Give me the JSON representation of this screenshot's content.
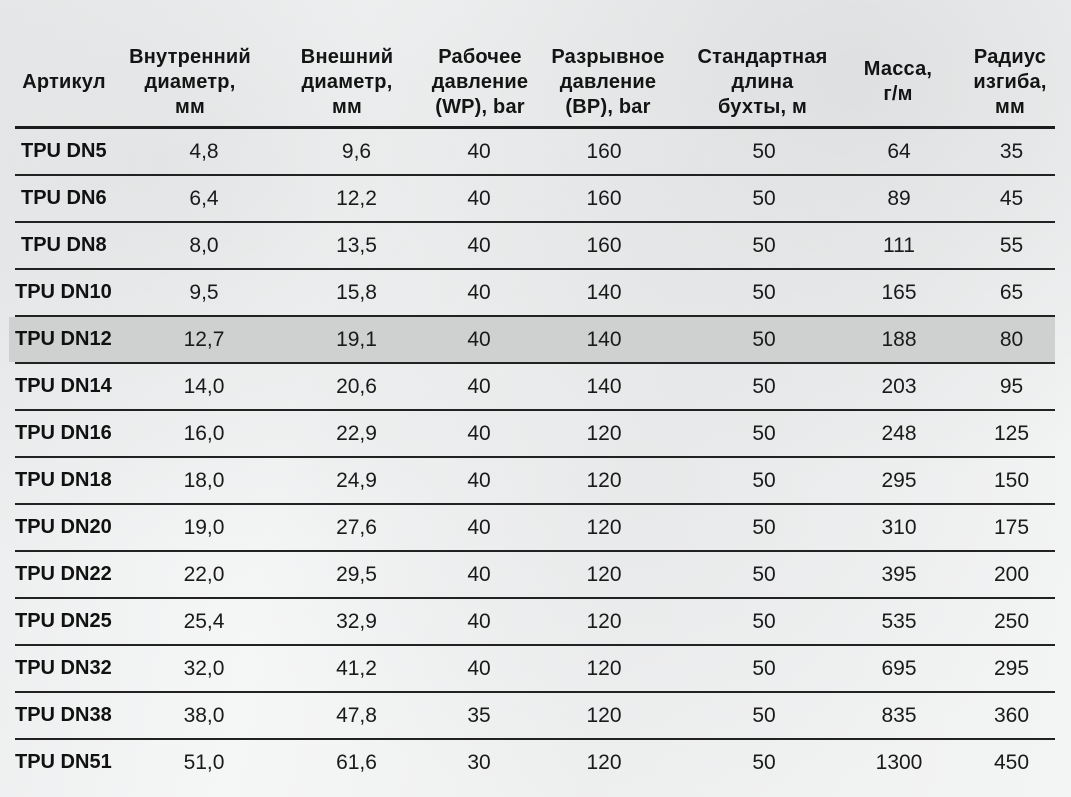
{
  "table": {
    "headers": [
      "Артикул",
      "Внутренний\nдиаметр,\nмм",
      "Внешний\nдиаметр,\nмм",
      "Рабочее\nдавление\n(WP), bar",
      "Разрывное\nдавление\n(BP), bar",
      "Стандартная\nдлина\nбухты, м",
      "Масса,\nг/м",
      "Радиус\nизгиба,\nмм"
    ],
    "highlighted_row_index": 4,
    "highlight_color": "#cfd0d0",
    "rows": [
      [
        "TPU DN5",
        "4,8",
        "9,6",
        "40",
        "160",
        "50",
        "64",
        "35"
      ],
      [
        "TPU DN6",
        "6,4",
        "12,2",
        "40",
        "160",
        "50",
        "89",
        "45"
      ],
      [
        "TPU DN8",
        "8,0",
        "13,5",
        "40",
        "160",
        "50",
        "111",
        "55"
      ],
      [
        "TPU DN10",
        "9,5",
        "15,8",
        "40",
        "140",
        "50",
        "165",
        "65"
      ],
      [
        "TPU DN12",
        "12,7",
        "19,1",
        "40",
        "140",
        "50",
        "188",
        "80"
      ],
      [
        "TPU DN14",
        "14,0",
        "20,6",
        "40",
        "140",
        "50",
        "203",
        "95"
      ],
      [
        "TPU DN16",
        "16,0",
        "22,9",
        "40",
        "120",
        "50",
        "248",
        "125"
      ],
      [
        "TPU DN18",
        "18,0",
        "24,9",
        "40",
        "120",
        "50",
        "295",
        "150"
      ],
      [
        "TPU DN20",
        "19,0",
        "27,6",
        "40",
        "120",
        "50",
        "310",
        "175"
      ],
      [
        "TPU DN22",
        "22,0",
        "29,5",
        "40",
        "120",
        "50",
        "395",
        "200"
      ],
      [
        "TPU DN25",
        "25,4",
        "32,9",
        "40",
        "120",
        "50",
        "535",
        "250"
      ],
      [
        "TPU DN32",
        "32,0",
        "41,2",
        "40",
        "120",
        "50",
        "695",
        "295"
      ],
      [
        "TPU DN38",
        "38,0",
        "47,8",
        "35",
        "120",
        "50",
        "835",
        "360"
      ],
      [
        "TPU DN51",
        "51,0",
        "61,6",
        "30",
        "120",
        "50",
        "1300",
        "450"
      ]
    ]
  }
}
